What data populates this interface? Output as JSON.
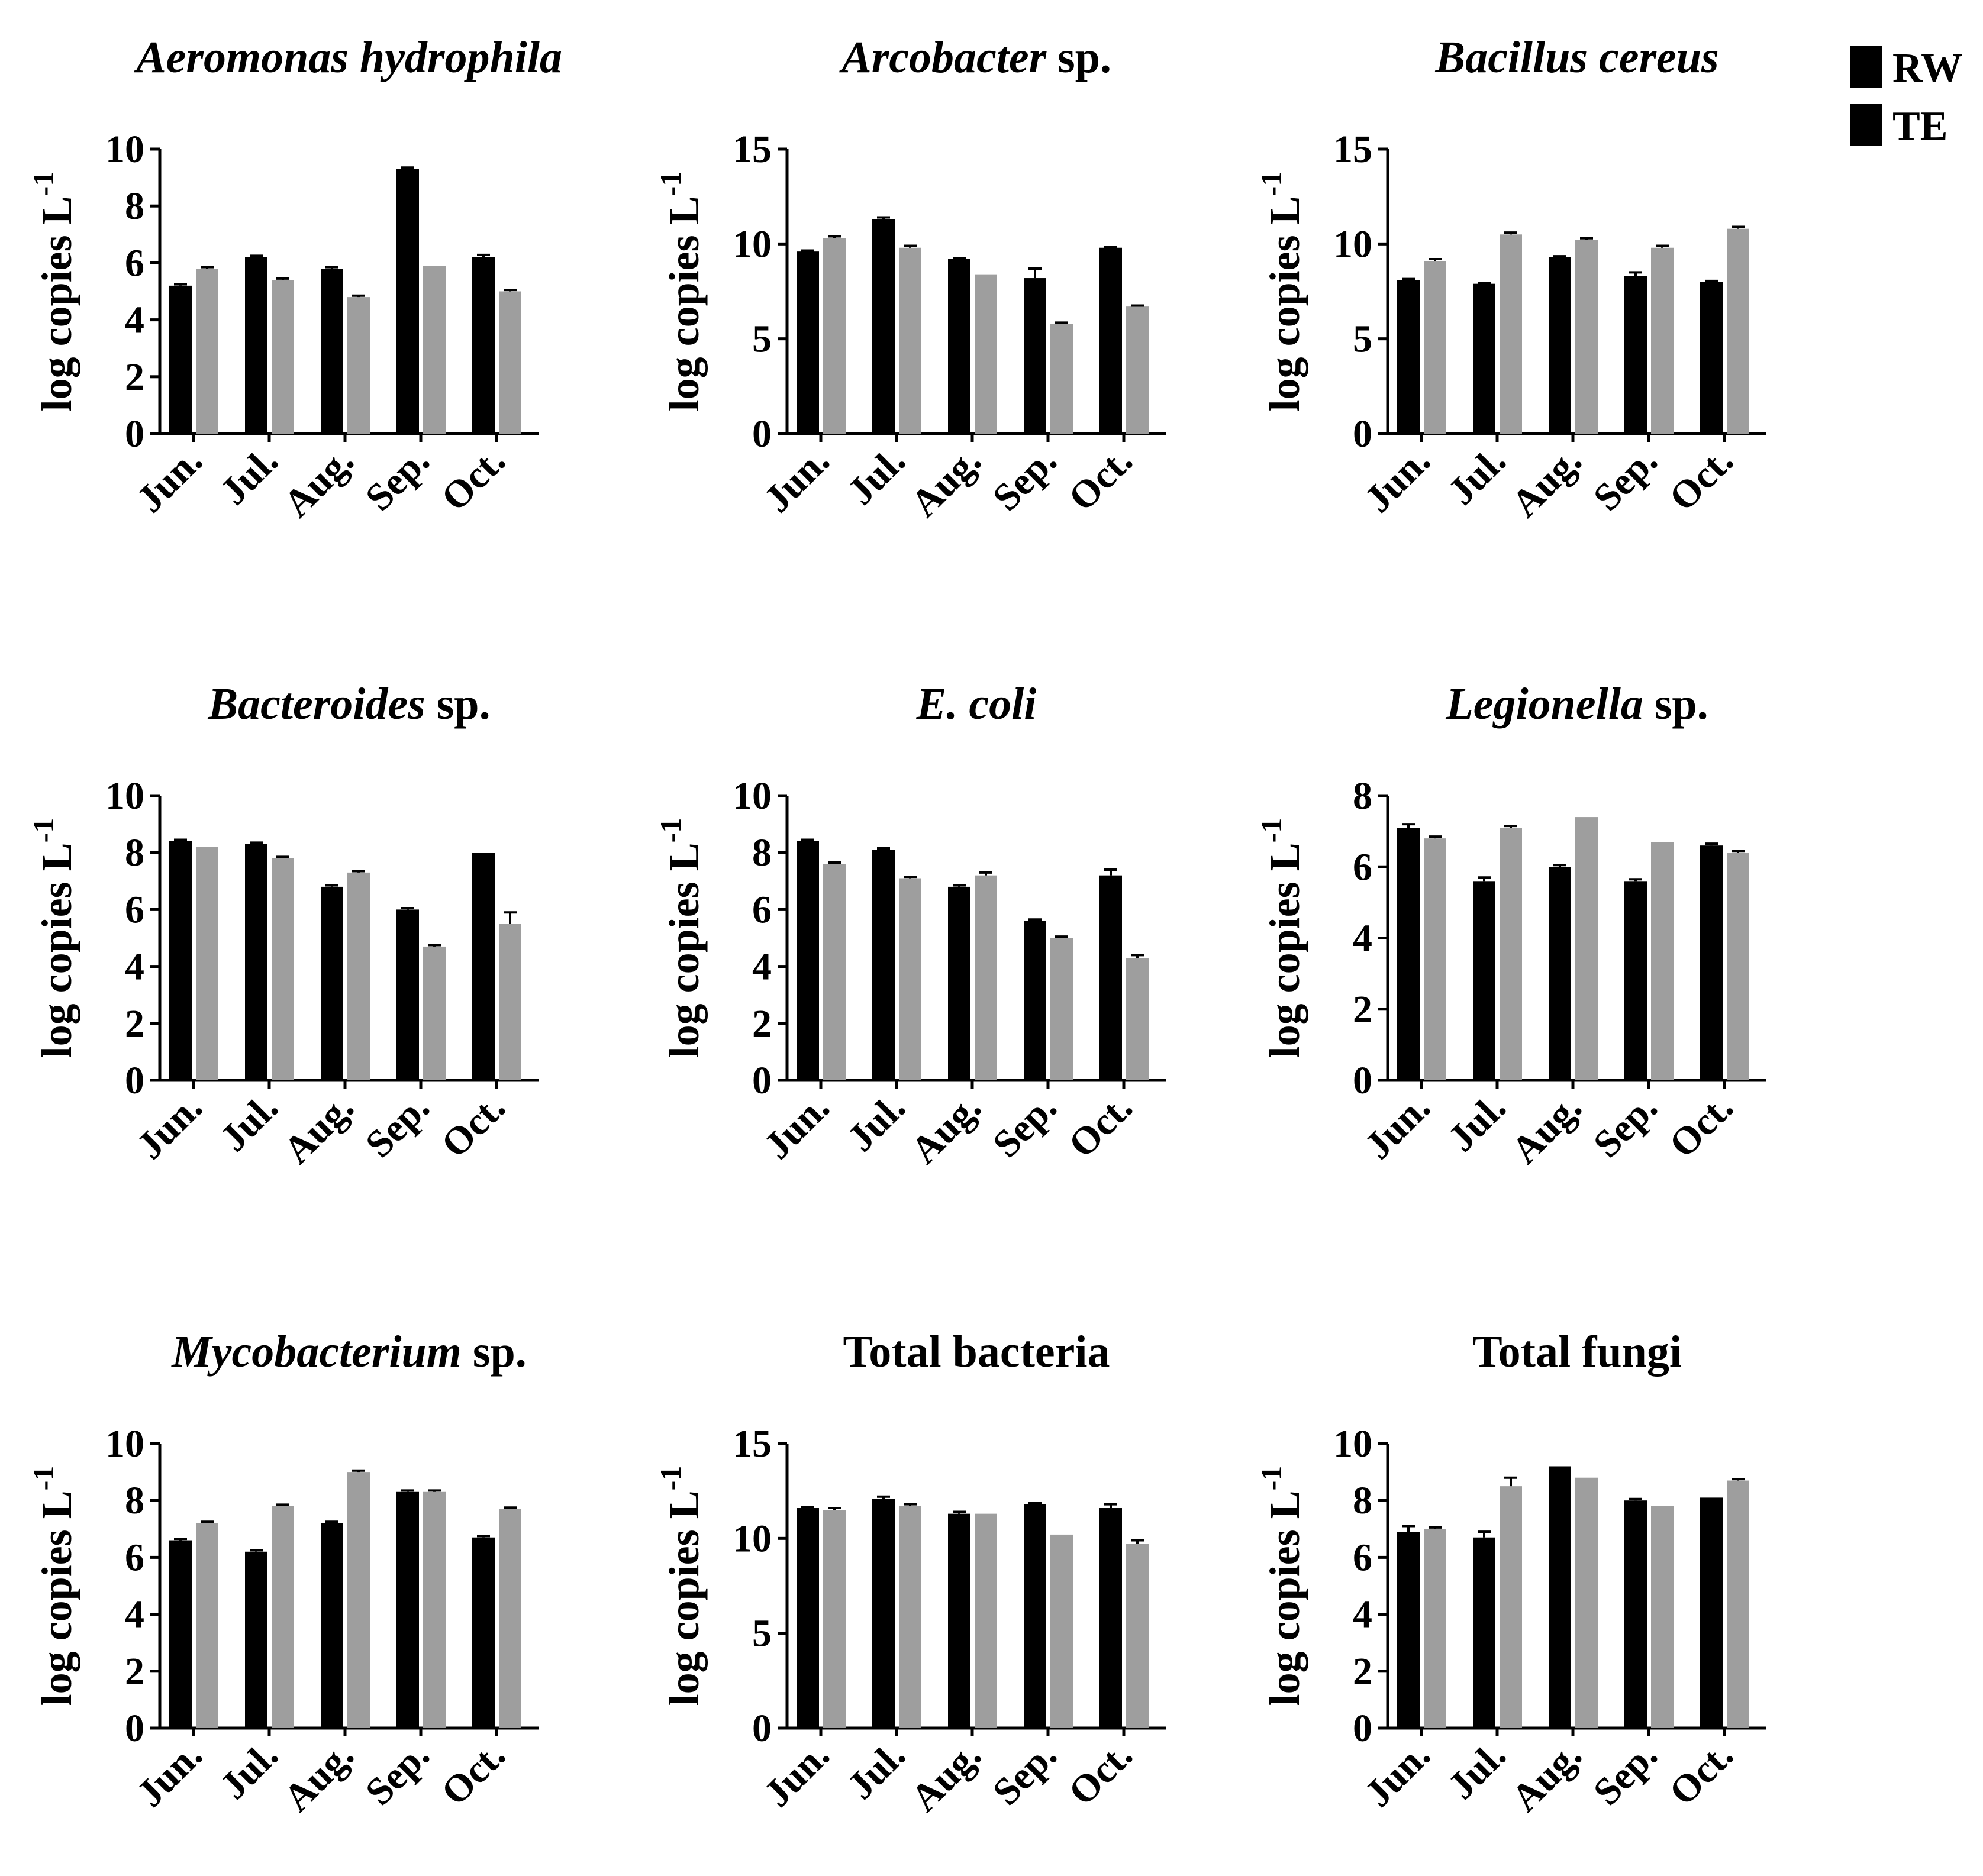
{
  "legend": [
    {
      "label": "RW",
      "color": "#000000"
    },
    {
      "label": "TE",
      "color": "#9e9e9e"
    }
  ],
  "chart_data": [
    {
      "type": "bar",
      "title_italic": "Aeromonas hydrophila",
      "title_plain": "",
      "ylabel": "log copies L",
      "ylabel_sup": "-1",
      "categories": [
        "Jun.",
        "Jul.",
        "Aug.",
        "Sep.",
        "Oct."
      ],
      "ylim": [
        0,
        10
      ],
      "yticks": [
        "0",
        "2",
        "4",
        "6",
        "8",
        "10"
      ],
      "series": [
        {
          "name": "RW",
          "values": [
            5.2,
            6.2,
            5.8,
            9.3,
            6.2
          ],
          "errors": [
            0.05,
            0.05,
            0.05,
            0.05,
            0.08
          ]
        },
        {
          "name": "TE",
          "values": [
            5.8,
            5.4,
            4.8,
            5.9,
            5.0
          ],
          "errors": [
            0.05,
            0.05,
            0.05,
            0,
            0.05
          ]
        }
      ]
    },
    {
      "type": "bar",
      "title_italic": "Arcobacter",
      "title_plain": " sp.",
      "ylabel": "log copies L",
      "ylabel_sup": "-1",
      "categories": [
        "Jun.",
        "Jul.",
        "Aug.",
        "Sep.",
        "Oct."
      ],
      "ylim": [
        0,
        15
      ],
      "yticks": [
        "0",
        "5",
        "10",
        "15"
      ],
      "series": [
        {
          "name": "RW",
          "values": [
            9.6,
            11.3,
            9.2,
            8.2,
            9.8
          ],
          "errors": [
            0.05,
            0.1,
            0.05,
            0.5,
            0.05
          ]
        },
        {
          "name": "TE",
          "values": [
            10.3,
            9.8,
            8.4,
            5.8,
            6.7
          ],
          "errors": [
            0.1,
            0.1,
            0,
            0.05,
            0.05
          ]
        }
      ]
    },
    {
      "type": "bar",
      "title_italic": "Bacillus cereus",
      "title_plain": "",
      "ylabel": "log copies L",
      "ylabel_sup": "-1",
      "categories": [
        "Jun.",
        "Jul.",
        "Aug.",
        "Sep.",
        "Oct."
      ],
      "ylim": [
        0,
        15
      ],
      "yticks": [
        "0",
        "5",
        "10",
        "15"
      ],
      "series": [
        {
          "name": "RW",
          "values": [
            8.1,
            7.9,
            9.3,
            8.3,
            8.0
          ],
          "errors": [
            0.05,
            0.05,
            0.05,
            0.2,
            0.05
          ]
        },
        {
          "name": "TE",
          "values": [
            9.1,
            10.5,
            10.2,
            9.8,
            10.8
          ],
          "errors": [
            0.1,
            0.1,
            0.1,
            0.1,
            0.1
          ]
        }
      ]
    },
    {
      "type": "bar",
      "title_italic": "Bacteroides",
      "title_plain": " sp.",
      "ylabel": "log copies L",
      "ylabel_sup": "-1",
      "categories": [
        "Jun.",
        "Jul.",
        "Aug.",
        "Sep.",
        "Oct."
      ],
      "ylim": [
        0,
        10
      ],
      "yticks": [
        "0",
        "2",
        "4",
        "6",
        "8",
        "10"
      ],
      "series": [
        {
          "name": "RW",
          "values": [
            8.4,
            8.3,
            6.8,
            6.0,
            8.0
          ],
          "errors": [
            0.05,
            0.05,
            0.05,
            0.05,
            0
          ]
        },
        {
          "name": "TE",
          "values": [
            8.2,
            7.8,
            7.3,
            4.7,
            5.5
          ],
          "errors": [
            0,
            0.05,
            0.05,
            0.05,
            0.4
          ]
        }
      ]
    },
    {
      "type": "bar",
      "title_italic": "E. coli",
      "title_plain": "",
      "ylabel": "log copies L",
      "ylabel_sup": "-1",
      "categories": [
        "Jun.",
        "Jul.",
        "Aug.",
        "Sep.",
        "Oct."
      ],
      "ylim": [
        0,
        10
      ],
      "yticks": [
        "0",
        "2",
        "4",
        "6",
        "8",
        "10"
      ],
      "series": [
        {
          "name": "RW",
          "values": [
            8.4,
            8.1,
            6.8,
            5.6,
            7.2
          ],
          "errors": [
            0.05,
            0.05,
            0.05,
            0.05,
            0.2
          ]
        },
        {
          "name": "TE",
          "values": [
            7.6,
            7.1,
            7.2,
            5.0,
            4.3
          ],
          "errors": [
            0.05,
            0.05,
            0.1,
            0.05,
            0.1
          ]
        }
      ]
    },
    {
      "type": "bar",
      "title_italic": "Legionella",
      "title_plain": " sp.",
      "ylabel": "log copies L",
      "ylabel_sup": "-1",
      "categories": [
        "Jun.",
        "Jul.",
        "Aug.",
        "Sep.",
        "Oct."
      ],
      "ylim": [
        0,
        8
      ],
      "yticks": [
        "0",
        "2",
        "4",
        "6",
        "8"
      ],
      "series": [
        {
          "name": "RW",
          "values": [
            7.1,
            5.6,
            6.0,
            5.6,
            6.6
          ],
          "errors": [
            0.1,
            0.1,
            0.05,
            0.05,
            0.05
          ]
        },
        {
          "name": "TE",
          "values": [
            6.8,
            7.1,
            7.4,
            6.7,
            6.4
          ],
          "errors": [
            0.05,
            0.05,
            0,
            0,
            0.05
          ]
        }
      ]
    },
    {
      "type": "bar",
      "title_italic": "Mycobacterium",
      "title_plain": " sp.",
      "ylabel": "log copies L",
      "ylabel_sup": "-1",
      "categories": [
        "Jun.",
        "Jul.",
        "Aug.",
        "Sep.",
        "Oct."
      ],
      "ylim": [
        0,
        10
      ],
      "yticks": [
        "0",
        "2",
        "4",
        "6",
        "8",
        "10"
      ],
      "series": [
        {
          "name": "RW",
          "values": [
            6.6,
            6.2,
            7.2,
            8.3,
            6.7
          ],
          "errors": [
            0.05,
            0.05,
            0.05,
            0.05,
            0.05
          ]
        },
        {
          "name": "TE",
          "values": [
            7.2,
            7.8,
            9.0,
            8.3,
            7.7
          ],
          "errors": [
            0.05,
            0.05,
            0.05,
            0.05,
            0.05
          ]
        }
      ]
    },
    {
      "type": "bar",
      "title_italic": "",
      "title_plain": "Total bacteria",
      "ylabel": "log copies L",
      "ylabel_sup": "-1",
      "categories": [
        "Jun.",
        "Jul.",
        "Aug.",
        "Sep.",
        "Oct."
      ],
      "ylim": [
        0,
        15
      ],
      "yticks": [
        "0",
        "5",
        "10",
        "15"
      ],
      "series": [
        {
          "name": "RW",
          "values": [
            11.6,
            12.1,
            11.3,
            11.8,
            11.6
          ],
          "errors": [
            0.05,
            0.1,
            0.1,
            0.05,
            0.2
          ]
        },
        {
          "name": "TE",
          "values": [
            11.5,
            11.7,
            11.3,
            10.2,
            9.7
          ],
          "errors": [
            0.1,
            0.1,
            0,
            0,
            0.2
          ]
        }
      ]
    },
    {
      "type": "bar",
      "title_italic": "",
      "title_plain": "Total fungi",
      "ylabel": "log copies L",
      "ylabel_sup": "-1",
      "categories": [
        "Jun.",
        "Jul.",
        "Aug.",
        "Sep.",
        "Oct."
      ],
      "ylim": [
        0,
        10
      ],
      "yticks": [
        "0",
        "2",
        "4",
        "6",
        "8",
        "10"
      ],
      "series": [
        {
          "name": "RW",
          "values": [
            6.9,
            6.7,
            9.2,
            8.0,
            8.1
          ],
          "errors": [
            0.2,
            0.2,
            0,
            0.05,
            0
          ]
        },
        {
          "name": "TE",
          "values": [
            7.0,
            8.5,
            8.8,
            7.8,
            8.7
          ],
          "errors": [
            0.05,
            0.3,
            0,
            0,
            0.05
          ]
        }
      ]
    }
  ]
}
